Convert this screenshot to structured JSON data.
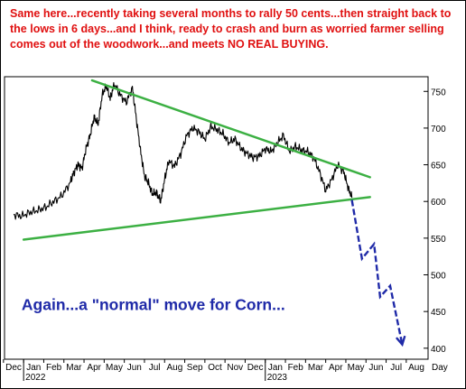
{
  "note": "Same here...recently taking several months to rally 50 cents...then straight back to the lows in 6 days...and I think, ready to crash and burn as worried farmer selling comes out of the woodwork...and meets NO REAL BUYING.",
  "colors": {
    "note": "#e01010",
    "price": "#000000",
    "trendline": "#3cb043",
    "arrow": "#1f2aa8",
    "annotation": "#1f2aa8"
  },
  "chart_data": {
    "type": "line",
    "title": "",
    "xlabel": "",
    "ylabel": "",
    "ylim": [
      385,
      770
    ],
    "y_ticks": [
      400,
      450,
      500,
      550,
      600,
      650,
      700,
      750
    ],
    "grid": false,
    "x_axis": {
      "months": [
        "Dec",
        "Jan",
        "Feb",
        "Mar",
        "Apr",
        "May",
        "Jun",
        "Jul",
        "Aug",
        "Sep",
        "Oct",
        "Nov",
        "Dec",
        "Jan",
        "Feb",
        "Mar",
        "Apr",
        "May",
        "Jun",
        "Jul",
        "Aug"
      ],
      "years": [
        {
          "label": "2022",
          "month_index": 1
        },
        {
          "label": "2023",
          "month_index": 13
        }
      ],
      "unit_label": "Day"
    },
    "series": [
      {
        "type": "line",
        "x": [
          0,
          0.4,
          0.8,
          1.2,
          1.6,
          2.0,
          2.4,
          2.8,
          3.0,
          3.2,
          3.4,
          3.6,
          3.8,
          4.0,
          4.2,
          4.4,
          4.6,
          4.8,
          5.0,
          5.3,
          5.6,
          5.9,
          6.1,
          6.3,
          6.5,
          6.7,
          6.9,
          7.1,
          7.3,
          7.5,
          7.7,
          8.0,
          8.3,
          8.6,
          8.9,
          9.2,
          9.5,
          9.8,
          10.1,
          10.4,
          10.7,
          11.0,
          11.3,
          11.6,
          11.9,
          12.2,
          12.5,
          12.8,
          13.1,
          13.4,
          13.7,
          14.0,
          14.3,
          14.6,
          14.9,
          15.2,
          15.5,
          15.8,
          16.1,
          16.4,
          16.6,
          16.8
        ],
        "values": [
          582,
          580,
          585,
          588,
          592,
          600,
          608,
          625,
          640,
          650,
          645,
          672,
          690,
          715,
          705,
          745,
          758,
          740,
          760,
          745,
          735,
          755,
          712,
          670,
          635,
          625,
          610,
          612,
          600,
          630,
          655,
          648,
          665,
          690,
          700,
          695,
          685,
          702,
          698,
          692,
          680,
          685,
          672,
          665,
          660,
          662,
          672,
          668,
          680,
          690,
          668,
          675,
          670,
          668,
          660,
          640,
          615,
          630,
          650,
          640,
          620,
          605
        ]
      },
      {
        "type": "trendline",
        "x": [
          0.5,
          17.7
        ],
        "values": [
          548,
          606
        ]
      },
      {
        "type": "trendline",
        "x": [
          3.9,
          17.7
        ],
        "values": [
          765,
          633
        ]
      },
      {
        "type": "projection",
        "x": [
          16.8,
          17.3,
          17.9,
          18.2,
          18.7,
          19.3
        ],
        "values": [
          602,
          522,
          542,
          470,
          485,
          405
        ]
      }
    ],
    "annotations": [
      {
        "text": "Again...a \"normal\" move for Corn...",
        "x": 0.4,
        "y": 452
      }
    ]
  }
}
